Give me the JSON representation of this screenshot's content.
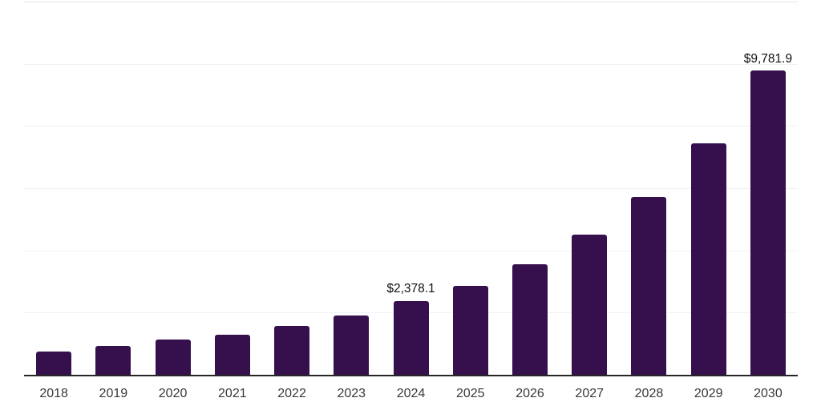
{
  "chart_data": {
    "type": "bar",
    "title": "",
    "categories": [
      "2018",
      "2019",
      "2020",
      "2021",
      "2022",
      "2023",
      "2024",
      "2025",
      "2026",
      "2027",
      "2028",
      "2029",
      "2030"
    ],
    "values": [
      760,
      930,
      1130,
      1300,
      1570,
      1910,
      2378.1,
      2860,
      3550,
      4500,
      5730,
      7430,
      9781.9
    ],
    "data_labels": [
      "",
      "",
      "",
      "",
      "",
      "",
      "$2,378.1",
      "",
      "",
      "",
      "",
      "",
      "$9,781.9"
    ],
    "xlabel": "",
    "ylabel": "",
    "ylim": [
      0,
      12000
    ],
    "grid_step": 2000,
    "grid": "horizontal",
    "legend": "none",
    "bar_color": "#35104D",
    "axis_color": "#262626",
    "gridline_color": "#f1f1f4",
    "top_gridline_color": "#e6e6ea",
    "tick_label_color": "#383838",
    "data_label_color": "#111111"
  }
}
